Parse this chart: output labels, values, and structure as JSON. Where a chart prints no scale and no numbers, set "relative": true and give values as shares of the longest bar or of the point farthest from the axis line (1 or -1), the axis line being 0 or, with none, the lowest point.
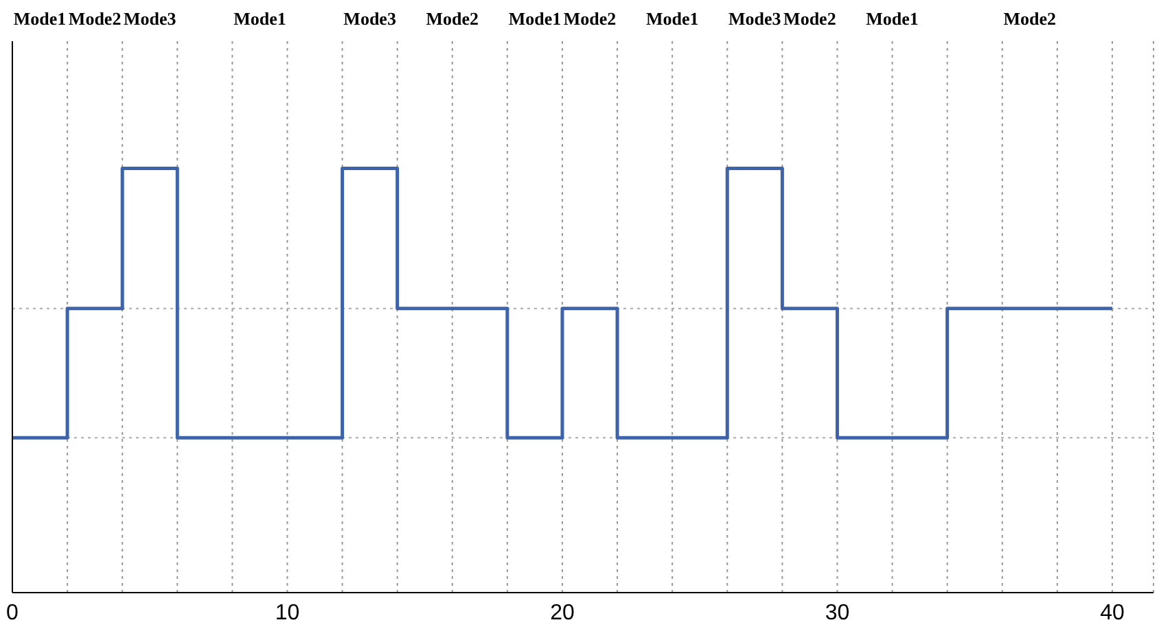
{
  "chart_data": {
    "type": "step",
    "relative": true,
    "x": [
      0,
      2,
      4,
      6,
      12,
      14,
      18,
      20,
      22,
      26,
      28,
      30,
      34,
      40
    ],
    "series": [
      {
        "color": "#3d63a8",
        "values": [
          0.365,
          0.67,
          1,
          0.365,
          1,
          0.67,
          0.365,
          0.67,
          0.365,
          1,
          0.67,
          0.365,
          0.67,
          0.67
        ]
      }
    ],
    "xlim": [
      0,
      41.5
    ],
    "xticks": [
      0,
      {
        "value": 2,
        "label": null
      },
      {
        "value": 4,
        "label": null
      },
      {
        "value": 6,
        "label": null
      },
      {
        "value": 8,
        "label": null
      },
      10,
      {
        "value": 12,
        "label": null
      },
      {
        "value": 14,
        "label": null
      },
      {
        "value": 16,
        "label": null
      },
      {
        "value": 18,
        "label": null
      },
      20,
      {
        "value": 22,
        "label": null
      },
      {
        "value": 24,
        "label": null
      },
      {
        "value": 26,
        "label": null
      },
      {
        "value": 28,
        "label": null
      },
      30,
      {
        "value": 32,
        "label": null
      },
      {
        "value": 34,
        "label": null
      },
      {
        "value": 36,
        "label": null
      },
      {
        "value": 38,
        "label": null
      },
      40
    ],
    "grid": "x",
    "legend": false,
    "marker": "none",
    "line_style": "solid",
    "ref_lines": [
      {
        "axis": "y",
        "value": 0.365,
        "color": "#aaaaaa",
        "line_style": "dotted"
      },
      {
        "axis": "y",
        "value": 0.67,
        "color": "#aaaaaa",
        "line_style": "dotted"
      }
    ],
    "annotations": [
      "Mode1",
      "Mode2",
      "Mode3",
      "Mode1",
      "Mode3",
      "Mode2",
      "Mode1",
      "Mode2",
      "Mode1",
      "Mode3",
      "Mode2",
      "Mode1",
      "Mode2"
    ]
  }
}
